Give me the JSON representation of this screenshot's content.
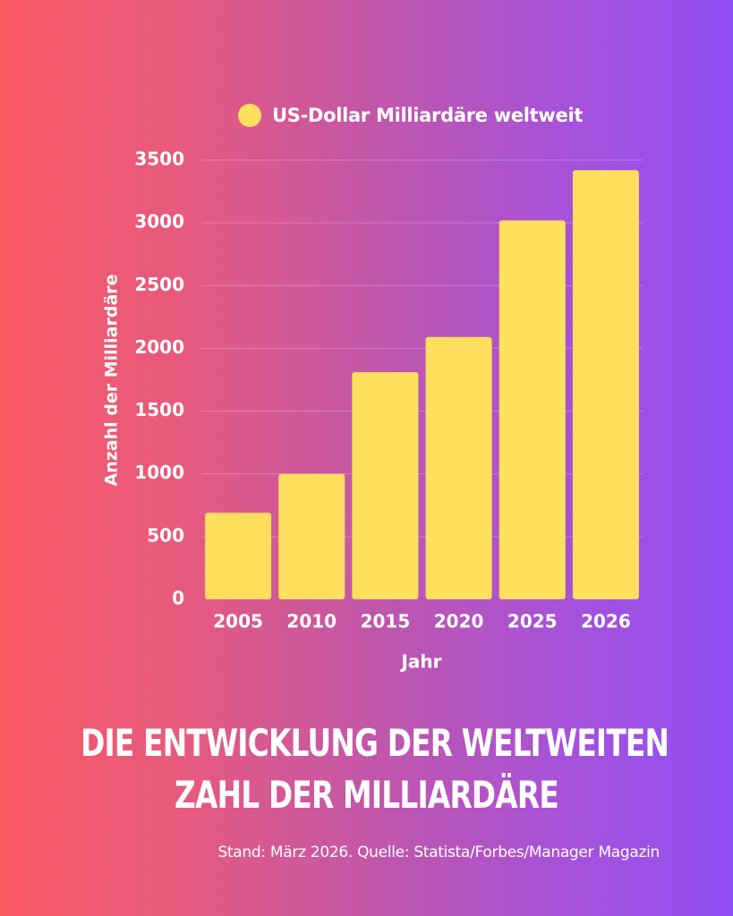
{
  "colors": {
    "bar": "#ffdf5e",
    "text": "#ffffff",
    "grid": "rgba(255,255,255,0.25)",
    "gradient_start": "#f95a63",
    "gradient_end": "#9150f6"
  },
  "chart_data": {
    "type": "bar",
    "categories": [
      "2005",
      "2010",
      "2015",
      "2020",
      "2025",
      "2026"
    ],
    "series": [
      {
        "name": "US-Dollar Milliardäre weltweit",
        "values": [
          690,
          1000,
          1810,
          2090,
          3020,
          3420
        ]
      }
    ],
    "xlabel": "Jahr",
    "ylabel": "Anzahl der Milliardäre",
    "ylim": [
      0,
      3500
    ],
    "yticks": [
      "0",
      "500",
      "1000",
      "1500",
      "2000",
      "2500",
      "3000",
      "3500"
    ],
    "grid": true,
    "legend_position": "top"
  },
  "headline": {
    "line1": "DIE ENTWICKLUNG DER WELTWEITEN",
    "line2": "ZAHL DER MILLIARDÄRE"
  },
  "source": "Stand: März 2026. Quelle: Statista/Forbes/Manager Magazin"
}
